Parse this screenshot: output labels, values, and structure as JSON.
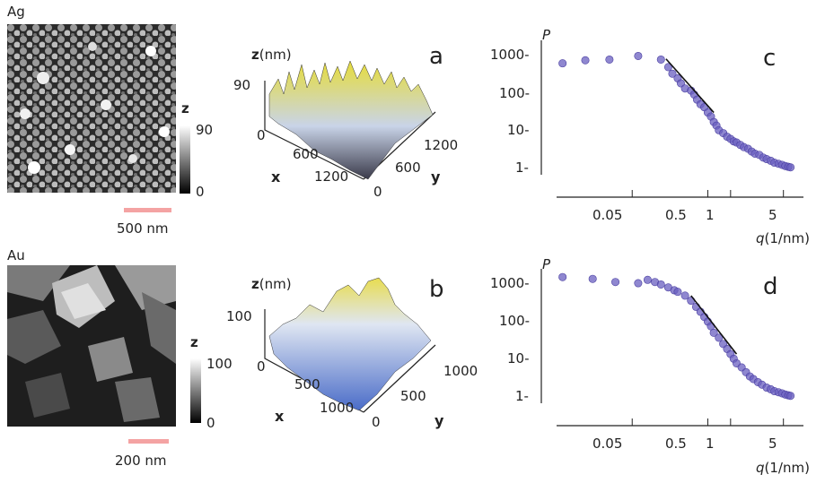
{
  "rows": [
    {
      "material": "Ag",
      "colorbar": {
        "label": "z",
        "max": "90",
        "min": "0"
      },
      "scalebar": {
        "label": "500 nm",
        "color": "#f4a3a3"
      },
      "surface": {
        "letter": "a",
        "zlabel_bold": "z",
        "zlabel_rest": "(nm)",
        "z_tick": "90",
        "z_zero": "0",
        "x_ticks": [
          "600",
          "1200"
        ],
        "y_ticks": [
          "0",
          "600",
          "1200"
        ],
        "xlabel": "x",
        "ylabel": "y",
        "colors": [
          "#e6dc3a",
          "#c9d4e8",
          "#3a3a4a"
        ]
      },
      "plot": {
        "letter": "c",
        "ylabel": "P",
        "xlabel_italic": "q",
        "xlabel_rest": "(1/nm)",
        "y_ticks": [
          "1000-",
          "100-",
          "10-",
          "1-"
        ],
        "x_ticks": [
          "0.05",
          "0.5",
          "1",
          "5"
        ]
      }
    },
    {
      "material": "Au",
      "colorbar": {
        "label": "z",
        "max": "100",
        "min": "0"
      },
      "scalebar": {
        "label": "200 nm",
        "color": "#f4a3a3"
      },
      "surface": {
        "letter": "b",
        "zlabel_bold": "z",
        "zlabel_rest": "(nm)",
        "z_tick": "100",
        "z_zero": "0",
        "x_ticks": [
          "500",
          "1000"
        ],
        "y_ticks": [
          "0",
          "500",
          "1000"
        ],
        "xlabel": "x",
        "ylabel": "y",
        "colors": [
          "#e8dc50",
          "#dfe6f2",
          "#4a6cc8"
        ]
      },
      "plot": {
        "letter": "d",
        "ylabel": "P",
        "xlabel_italic": "q",
        "xlabel_rest": "(1/nm)",
        "y_ticks": [
          "1000-",
          "100-",
          "10-",
          "1-"
        ],
        "x_ticks": [
          "0.05",
          "0.5",
          "1",
          "5"
        ]
      }
    }
  ],
  "chart_data": [
    {
      "type": "scatter",
      "panel": "c",
      "xscale": "log",
      "yscale": "log",
      "xlim": [
        0.005,
        7
      ],
      "ylim": [
        0.5,
        1200
      ],
      "points_color": "#6a5fc0",
      "x": [
        0.006,
        0.012,
        0.025,
        0.06,
        0.12,
        0.15,
        0.17,
        0.2,
        0.22,
        0.25,
        0.3,
        0.33,
        0.36,
        0.4,
        0.45,
        0.5,
        0.55,
        0.6,
        0.65,
        0.7,
        0.8,
        0.9,
        1.0,
        1.1,
        1.2,
        1.35,
        1.5,
        1.7,
        1.9,
        2.1,
        2.4,
        2.7,
        3.0,
        3.4,
        3.8,
        4.3,
        4.8,
        5.3,
        5.8,
        6.2
      ],
      "y": [
        380,
        460,
        480,
        600,
        480,
        300,
        200,
        150,
        110,
        80,
        70,
        55,
        40,
        30,
        25,
        18,
        14,
        10,
        8,
        6,
        5,
        4,
        3.5,
        3,
        2.8,
        2.4,
        2.1,
        1.9,
        1.6,
        1.4,
        1.3,
        1.1,
        1.0,
        0.9,
        0.8,
        0.75,
        0.7,
        0.65,
        0.62,
        0.6
      ],
      "fit_line": {
        "x": [
          0.14,
          0.6
        ],
        "y": [
          500,
          18
        ]
      }
    },
    {
      "type": "scatter",
      "panel": "d",
      "xscale": "log",
      "yscale": "log",
      "xlim": [
        0.005,
        7
      ],
      "ylim": [
        0.5,
        1200
      ],
      "points_color": "#6a5fc0",
      "x": [
        0.006,
        0.015,
        0.03,
        0.06,
        0.08,
        0.1,
        0.12,
        0.15,
        0.18,
        0.2,
        0.25,
        0.3,
        0.35,
        0.4,
        0.45,
        0.5,
        0.55,
        0.6,
        0.7,
        0.8,
        0.9,
        1.0,
        1.1,
        1.2,
        1.4,
        1.6,
        1.8,
        2.0,
        2.3,
        2.6,
        3.0,
        3.4,
        3.8,
        4.3,
        4.8,
        5.3,
        5.8,
        6.2
      ],
      "y": [
        950,
        850,
        700,
        650,
        800,
        700,
        600,
        500,
        420,
        380,
        300,
        220,
        150,
        110,
        80,
        60,
        45,
        30,
        22,
        15,
        11,
        8,
        6,
        4.5,
        3.5,
        2.6,
        2.0,
        1.7,
        1.4,
        1.2,
        1.0,
        0.9,
        0.8,
        0.75,
        0.7,
        0.65,
        0.62,
        0.6
      ],
      "fit_line": {
        "x": [
          0.3,
          1.2
        ],
        "y": [
          300,
          8
        ]
      }
    }
  ]
}
